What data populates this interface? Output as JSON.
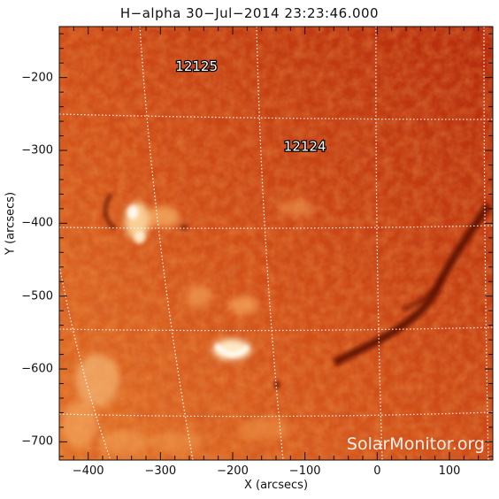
{
  "title": "H−alpha 30−Jul−2014 23:23:46.000",
  "axes": {
    "x_label": "X (arcsecs)",
    "y_label": "Y (arcsecs)",
    "x_range": [
      -440,
      160
    ],
    "y_range": [
      -725,
      -130
    ],
    "x_ticks": [
      -400,
      -300,
      -200,
      -100,
      0,
      100
    ],
    "x_tick_labels": [
      "−400",
      "−300",
      "−200",
      "−100",
      "0",
      "100"
    ],
    "y_ticks": [
      -200,
      -300,
      -400,
      -500,
      -600,
      -700
    ],
    "y_tick_labels": [
      "−200",
      "−300",
      "−400",
      "−500",
      "−600",
      "−700"
    ]
  },
  "regions": [
    {
      "label": "12125",
      "x": -250,
      "y": -185
    },
    {
      "label": "12124",
      "x": -100,
      "y": -295
    }
  ],
  "watermark": "SolarMonitor.org",
  "colors": {
    "disk_dark": "#b0250a",
    "disk_mid": "#d4511a",
    "disk_light": "#e8782c",
    "plage": "#ffe8b8",
    "filament": "#5a0a04",
    "grid": "#ffffff"
  },
  "grid": "heliographic dotted grid"
}
